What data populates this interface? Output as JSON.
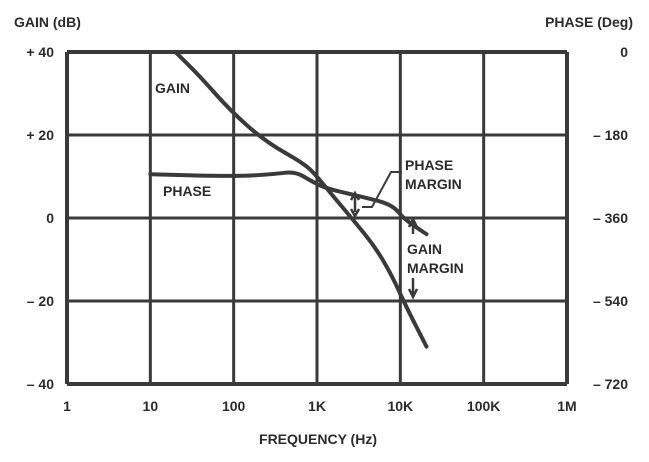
{
  "chart_data": {
    "type": "line",
    "title": "",
    "xlabel": "FREQUENCY (Hz)",
    "ylabel": "GAIN (dB)",
    "y2label": "PHASE (Deg)",
    "xscale": "log",
    "xlim": [
      1,
      1000000
    ],
    "ylim": [
      -40,
      40
    ],
    "y2lim": [
      -720,
      0
    ],
    "grid": true,
    "x_ticks": [
      1,
      10,
      100,
      1000,
      10000,
      100000,
      1000000
    ],
    "x_tick_labels": [
      "1",
      "10",
      "100",
      "1K",
      "10K",
      "100K",
      "1M"
    ],
    "y_ticks": [
      40,
      20,
      0,
      -20,
      -40
    ],
    "y_tick_labels": [
      "+ 40",
      "+ 20",
      "0",
      "– 20",
      "– 40"
    ],
    "y2_ticks": [
      0,
      -180,
      -360,
      -540,
      -720
    ],
    "y2_tick_labels": [
      "0",
      "– 180",
      "– 360",
      "– 540",
      "– 720"
    ],
    "series": [
      {
        "name": "GAIN",
        "axis": "left",
        "x": [
          20,
          40,
          90,
          236,
          716,
          1000,
          1600,
          2600,
          5000,
          8000,
          11500,
          20600
        ],
        "y": [
          40,
          34,
          26,
          18.5,
          13,
          10,
          5,
          0,
          -7,
          -14,
          -21,
          -31
        ]
      },
      {
        "name": "PHASE",
        "axis": "right",
        "x": [
          10,
          100,
          300,
          550,
          870,
          1300,
          3500,
          8000,
          11000,
          20600
        ],
        "y": [
          -265,
          -270,
          -265,
          -259,
          -281,
          -296,
          -314,
          -331,
          -362,
          -395
        ]
      }
    ],
    "annotations": [
      {
        "text": [
          "PHASE",
          "MARGIN"
        ]
      },
      {
        "text": [
          "GAIN",
          "MARGIN"
        ]
      }
    ],
    "colors": {
      "line": "#3a3a3a",
      "grid": "#3a3a3a",
      "text": "#2b2b2b"
    }
  }
}
